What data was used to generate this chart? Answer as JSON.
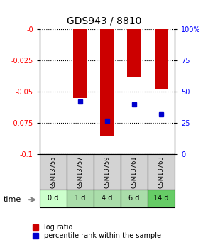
{
  "title": "GDS943 / 8810",
  "samples": [
    "GSM13755",
    "GSM13757",
    "GSM13759",
    "GSM13761",
    "GSM13763"
  ],
  "time_labels": [
    "0 d",
    "1 d",
    "4 d",
    "6 d",
    "14 d"
  ],
  "log_ratios": [
    0.0,
    -0.055,
    -0.085,
    -0.038,
    -0.048
  ],
  "percentile_ranks": [
    null,
    42,
    27,
    40,
    32
  ],
  "bar_color": "#cc0000",
  "percentile_color": "#0000cc",
  "ylim_left": [
    -0.1,
    0.0
  ],
  "ylim_right": [
    0,
    100
  ],
  "yticks_left": [
    0.0,
    -0.025,
    -0.05,
    -0.075,
    -0.1
  ],
  "ytick_labels_left": [
    "-0",
    "-0.025",
    "-0.05",
    "-0.075",
    "-0.1"
  ],
  "yticks_right": [
    100,
    75,
    50,
    25,
    0
  ],
  "ytick_labels_right": [
    "100%",
    "75",
    "50",
    "25",
    "0"
  ],
  "bg_color_gsm": "#d3d3d3",
  "time_colors": [
    "#ccffcc",
    "#aaddaa",
    "#aaddaa",
    "#aaddaa",
    "#66cc66"
  ],
  "bar_width": 0.5,
  "legend_entries": [
    "log ratio",
    "percentile rank within the sample"
  ]
}
